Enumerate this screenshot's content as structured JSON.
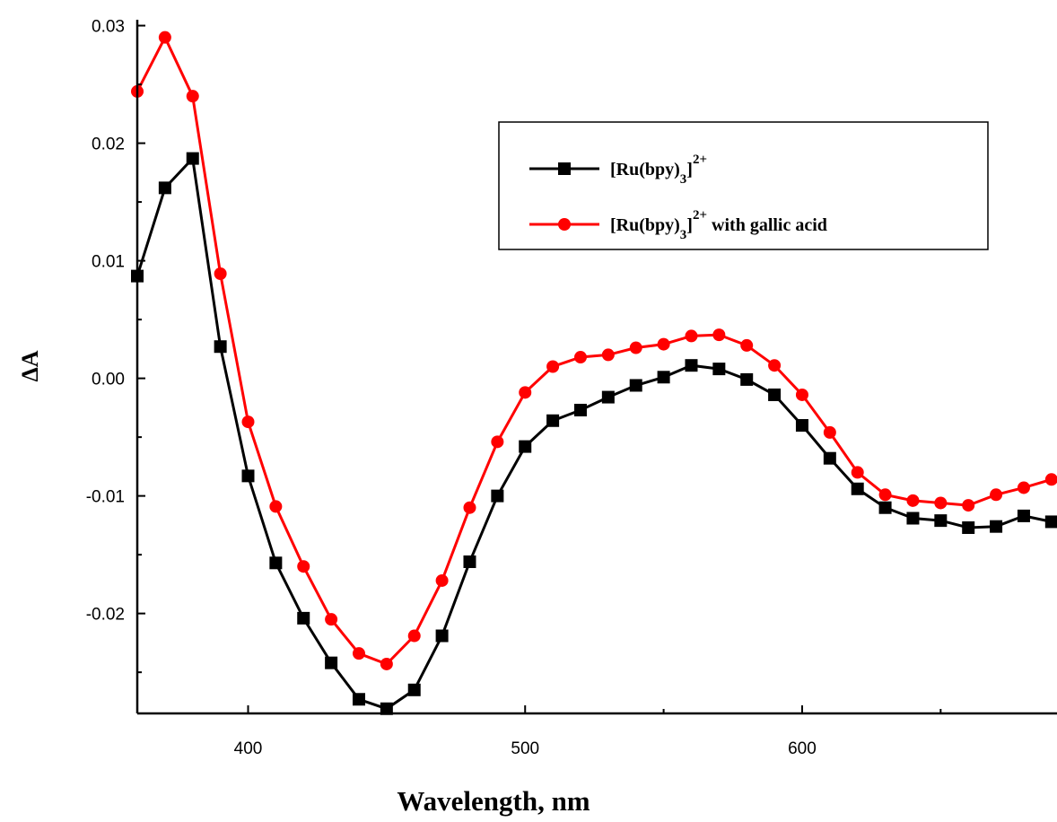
{
  "chart_data": {
    "type": "line",
    "xlabel": "Wavelength, nm",
    "ylabel": "ΔA",
    "xlim": [
      360,
      692
    ],
    "ylim": [
      -0.0285,
      0.0305
    ],
    "x_ticks": [
      400,
      500,
      600
    ],
    "x_tick_labels": [
      "400",
      "500",
      "600"
    ],
    "y_ticks": [
      0.03,
      0.02,
      0.01,
      0.0,
      -0.01,
      -0.02
    ],
    "y_tick_labels": [
      "0.03",
      "0.02",
      "0.01",
      "0.00",
      "-0.01",
      "-0.02"
    ],
    "grid": false,
    "legend_position": "top-right",
    "x": [
      360,
      370,
      380,
      390,
      400,
      410,
      420,
      430,
      440,
      450,
      460,
      470,
      480,
      490,
      500,
      510,
      520,
      530,
      540,
      550,
      560,
      570,
      580,
      590,
      600,
      610,
      620,
      630,
      640,
      650,
      660,
      670,
      680,
      690
    ],
    "series": [
      {
        "legend_main": "[Ru(bpy)",
        "legend_sub": "3",
        "legend_close": "]",
        "legend_sup": "2+",
        "legend_suffix": "",
        "color": "#000000",
        "marker": "square",
        "values": [
          0.0087,
          0.0162,
          0.0187,
          0.0027,
          -0.0083,
          -0.0157,
          -0.0204,
          -0.0242,
          -0.0273,
          -0.0281,
          -0.0265,
          -0.0219,
          -0.0156,
          -0.01,
          -0.0058,
          -0.0036,
          -0.0027,
          -0.0016,
          -0.0006,
          0.0001,
          0.0011,
          0.0008,
          -0.0001,
          -0.0014,
          -0.004,
          -0.0068,
          -0.0094,
          -0.011,
          -0.0119,
          -0.0121,
          -0.0127,
          -0.0126,
          -0.0117,
          -0.0122
        ]
      },
      {
        "legend_main": "[Ru(bpy)",
        "legend_sub": "3",
        "legend_close": "]",
        "legend_sup": "2+",
        "legend_suffix": " with gallic acid",
        "color": "#ff0000",
        "marker": "circle",
        "values": [
          0.0244,
          0.029,
          0.024,
          0.0089,
          -0.0037,
          -0.0109,
          -0.016,
          -0.0205,
          -0.0234,
          -0.0243,
          -0.0219,
          -0.0172,
          -0.011,
          -0.0054,
          -0.0012,
          0.001,
          0.0018,
          0.002,
          0.0026,
          0.0029,
          0.0036,
          0.0037,
          0.0028,
          0.0011,
          -0.0014,
          -0.0046,
          -0.008,
          -0.0099,
          -0.0104,
          -0.0106,
          -0.0108,
          -0.0099,
          -0.0093,
          -0.0086
        ]
      }
    ]
  }
}
